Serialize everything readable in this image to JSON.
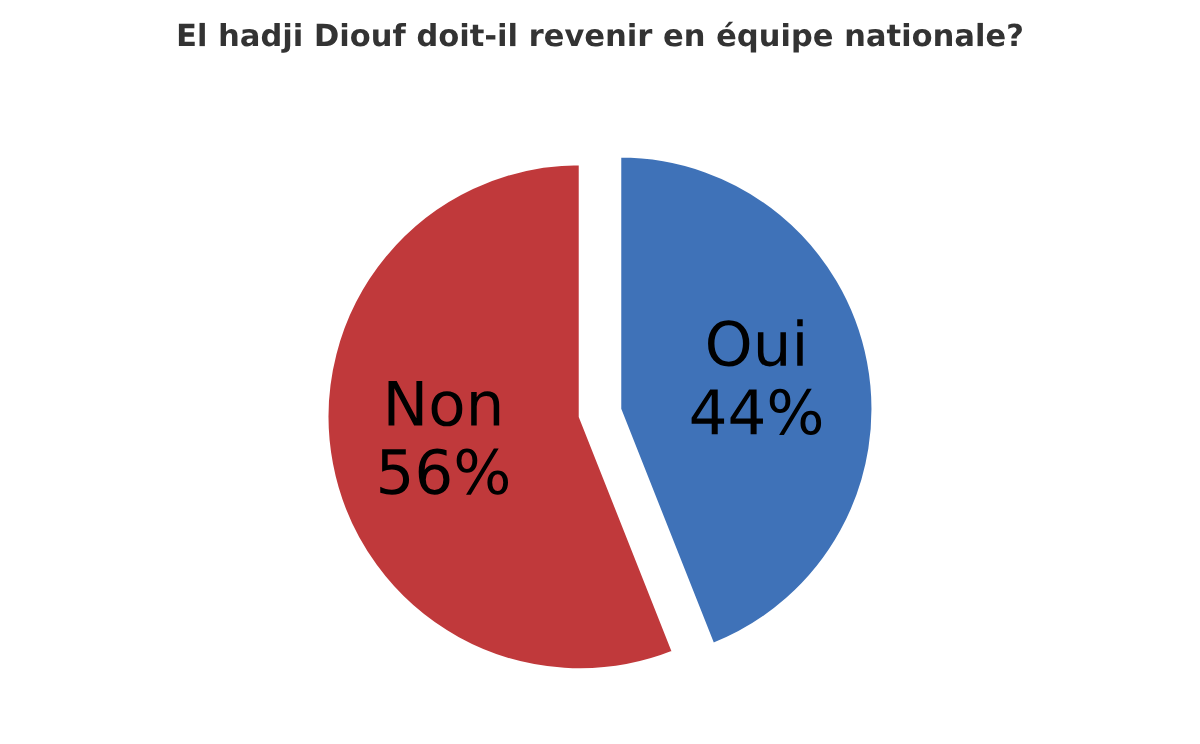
{
  "chart_data": {
    "type": "pie",
    "title": "El hadji Diouf doit-il revenir en équipe nationale?",
    "categories": [
      "Oui",
      "Non"
    ],
    "values": [
      44,
      56
    ],
    "value_labels": [
      "44%",
      "56%"
    ],
    "colors": [
      "#3f72b8",
      "#c0393b"
    ]
  }
}
